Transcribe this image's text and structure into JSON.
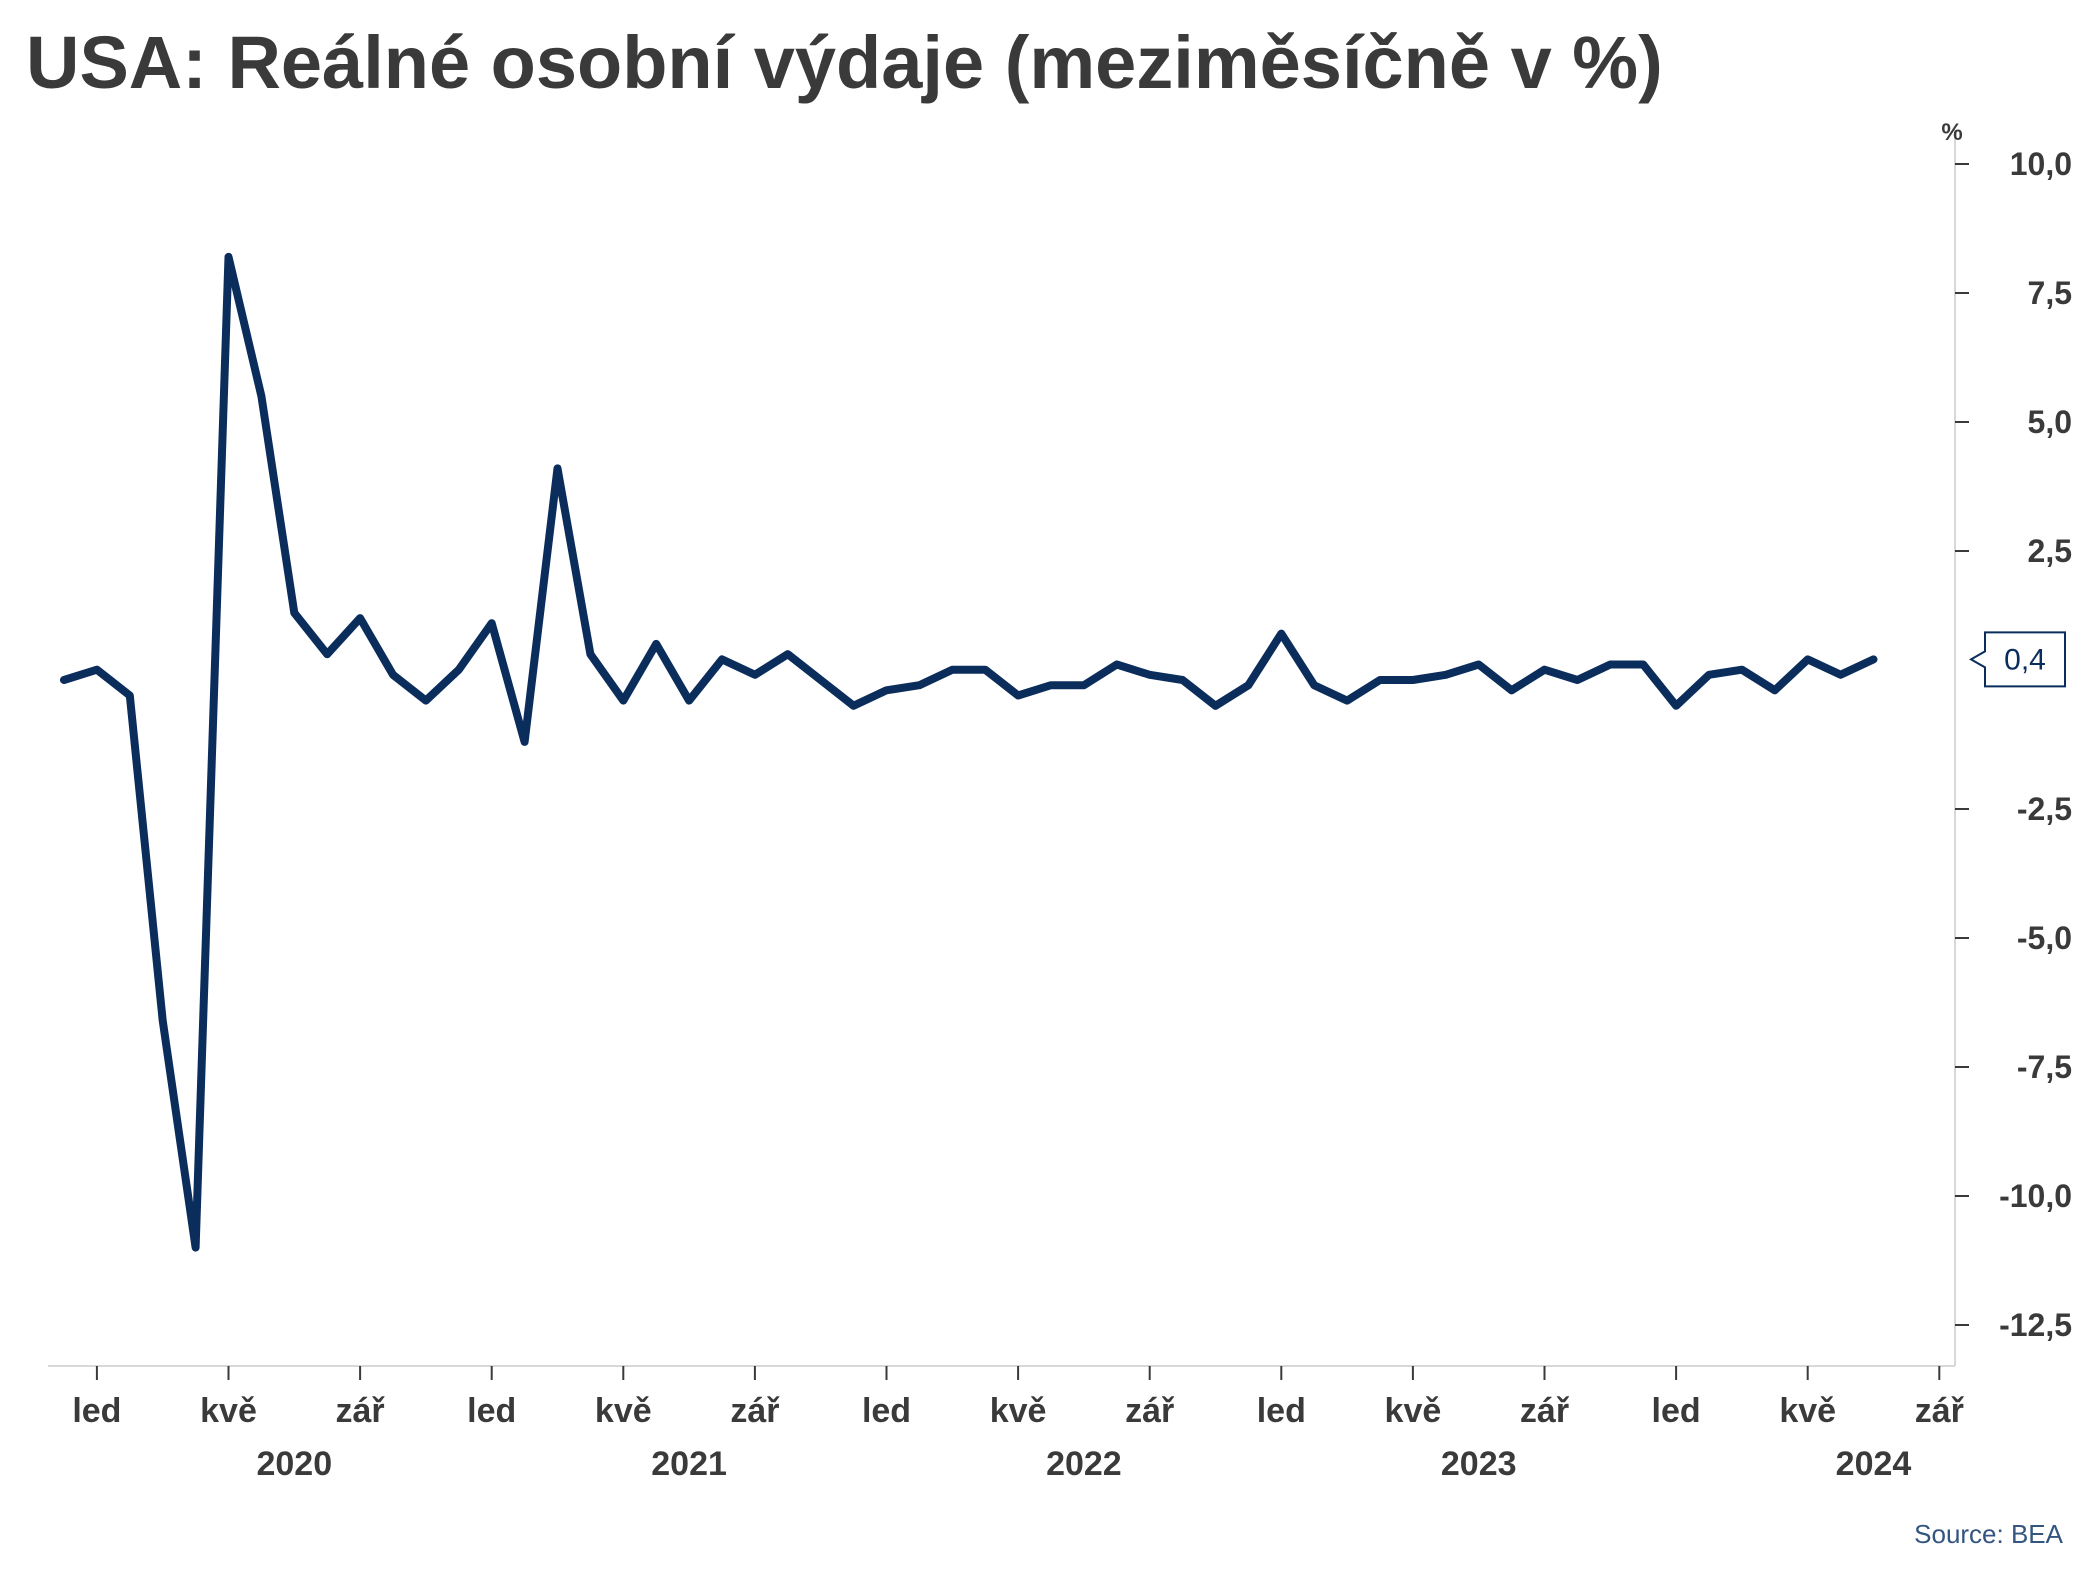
{
  "title": "USA: Reálné osobní výdaje (meziměsíčně v %)",
  "source": "Source: BEA",
  "chart_data": {
    "type": "line",
    "title": "USA: Reálné osobní výdaje (meziměsíčně v %)",
    "unit": "%",
    "ylim": [
      -13.0,
      10.6
    ],
    "yticks": [
      10.0,
      7.5,
      5.0,
      2.5,
      -2.5,
      -5.0,
      -7.5,
      -10.0,
      -12.5
    ],
    "ytick_labels": [
      "10,0",
      "7,5",
      "5,0",
      "2,5",
      "-2,5",
      "-5,0",
      "-7,5",
      "-10,0",
      "-12,5"
    ],
    "y_axis_position": "right",
    "grid": false,
    "x_month_labels": [
      {
        "month": "2020-01",
        "label": "led"
      },
      {
        "month": "2020-05",
        "label": "kvě"
      },
      {
        "month": "2020-09",
        "label": "zář"
      },
      {
        "month": "2021-01",
        "label": "led"
      },
      {
        "month": "2021-05",
        "label": "kvě"
      },
      {
        "month": "2021-09",
        "label": "zář"
      },
      {
        "month": "2022-01",
        "label": "led"
      },
      {
        "month": "2022-05",
        "label": "kvě"
      },
      {
        "month": "2022-09",
        "label": "zář"
      },
      {
        "month": "2023-01",
        "label": "led"
      },
      {
        "month": "2023-05",
        "label": "kvě"
      },
      {
        "month": "2023-09",
        "label": "zář"
      },
      {
        "month": "2024-01",
        "label": "led"
      },
      {
        "month": "2024-05",
        "label": "kvě"
      },
      {
        "month": "2024-09",
        "label": "zář"
      }
    ],
    "x_year_labels": [
      {
        "year": "2020",
        "center_month": "2020-07"
      },
      {
        "year": "2021",
        "center_month": "2021-07"
      },
      {
        "year": "2022",
        "center_month": "2022-07"
      },
      {
        "year": "2023",
        "center_month": "2023-07"
      },
      {
        "year": "2024",
        "center_month": "2024-07"
      }
    ],
    "series": [
      {
        "color": "#0b2d5b",
        "points": [
          {
            "x": "2019-12",
            "y": 0.0
          },
          {
            "x": "2020-01",
            "y": 0.2
          },
          {
            "x": "2020-02",
            "y": -0.3
          },
          {
            "x": "2020-03",
            "y": -6.6
          },
          {
            "x": "2020-04",
            "y": -11.0
          },
          {
            "x": "2020-05",
            "y": 8.2
          },
          {
            "x": "2020-06",
            "y": 5.5
          },
          {
            "x": "2020-07",
            "y": 1.3
          },
          {
            "x": "2020-08",
            "y": 0.5
          },
          {
            "x": "2020-09",
            "y": 1.2
          },
          {
            "x": "2020-10",
            "y": 0.1
          },
          {
            "x": "2020-11",
            "y": -0.4
          },
          {
            "x": "2020-12",
            "y": 0.2
          },
          {
            "x": "2021-01",
            "y": 1.1
          },
          {
            "x": "2021-02",
            "y": -1.2
          },
          {
            "x": "2021-03",
            "y": 4.1
          },
          {
            "x": "2021-04",
            "y": 0.5
          },
          {
            "x": "2021-05",
            "y": -0.4
          },
          {
            "x": "2021-06",
            "y": 0.7
          },
          {
            "x": "2021-07",
            "y": -0.4
          },
          {
            "x": "2021-08",
            "y": 0.4
          },
          {
            "x": "2021-09",
            "y": 0.1
          },
          {
            "x": "2021-10",
            "y": 0.5
          },
          {
            "x": "2021-11",
            "y": 0.0
          },
          {
            "x": "2021-12",
            "y": -0.5
          },
          {
            "x": "2022-01",
            "y": -0.2
          },
          {
            "x": "2022-02",
            "y": -0.1
          },
          {
            "x": "2022-03",
            "y": 0.2
          },
          {
            "x": "2022-04",
            "y": 0.2
          },
          {
            "x": "2022-05",
            "y": -0.3
          },
          {
            "x": "2022-06",
            "y": -0.1
          },
          {
            "x": "2022-07",
            "y": -0.1
          },
          {
            "x": "2022-08",
            "y": 0.3
          },
          {
            "x": "2022-09",
            "y": 0.1
          },
          {
            "x": "2022-10",
            "y": 0.0
          },
          {
            "x": "2022-11",
            "y": -0.5
          },
          {
            "x": "2022-12",
            "y": -0.1
          },
          {
            "x": "2023-01",
            "y": 0.9
          },
          {
            "x": "2023-02",
            "y": -0.1
          },
          {
            "x": "2023-03",
            "y": -0.4
          },
          {
            "x": "2023-04",
            "y": 0.0
          },
          {
            "x": "2023-05",
            "y": 0.0
          },
          {
            "x": "2023-06",
            "y": 0.1
          },
          {
            "x": "2023-07",
            "y": 0.3
          },
          {
            "x": "2023-08",
            "y": -0.2
          },
          {
            "x": "2023-09",
            "y": 0.2
          },
          {
            "x": "2023-10",
            "y": 0.0
          },
          {
            "x": "2023-11",
            "y": 0.3
          },
          {
            "x": "2023-12",
            "y": 0.3
          },
          {
            "x": "2024-01",
            "y": -0.5
          },
          {
            "x": "2024-02",
            "y": 0.1
          },
          {
            "x": "2024-03",
            "y": 0.2
          },
          {
            "x": "2024-04",
            "y": -0.2
          },
          {
            "x": "2024-05",
            "y": 0.4
          },
          {
            "x": "2024-06",
            "y": 0.1
          },
          {
            "x": "2024-07",
            "y": 0.4
          }
        ]
      }
    ],
    "last_value_label": "0,4"
  }
}
